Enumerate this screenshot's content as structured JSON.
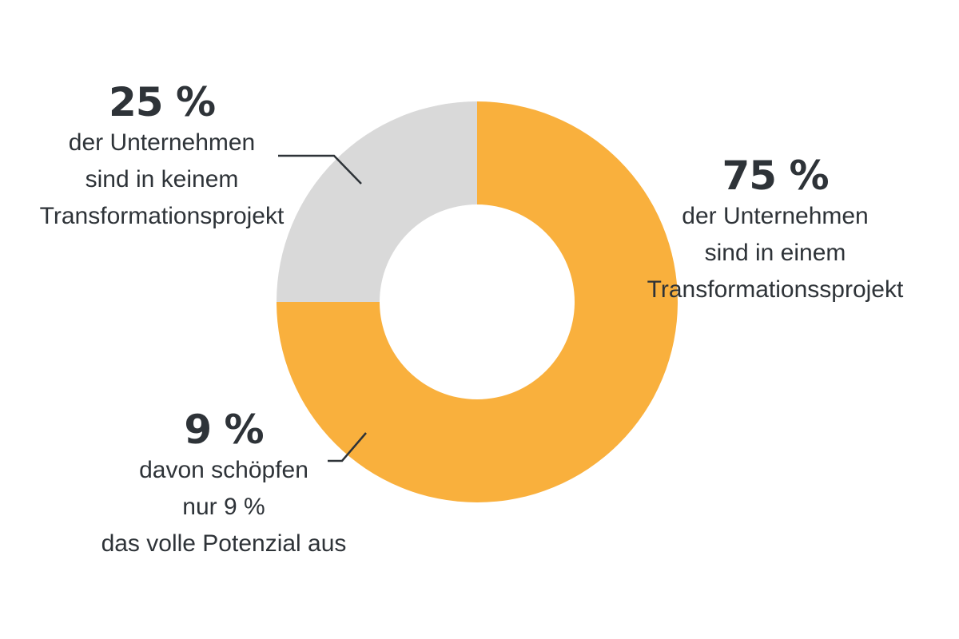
{
  "colors": {
    "primary": "#F9B03D",
    "secondary": "#D9D9D9",
    "text": "#2E3338",
    "leader": "#2E3338"
  },
  "chart_data": {
    "type": "pie",
    "variant": "donut",
    "slices": [
      {
        "label": "in einem Transformationsprojekt",
        "value": 75,
        "color": "#F9B03D"
      },
      {
        "label": "in keinem Transformationsprojekt",
        "value": 25,
        "color": "#D9D9D9"
      }
    ],
    "annotations": {
      "grey": {
        "percent": "25 %",
        "lines": [
          "der Unternehmen",
          "sind in keinem",
          "Transformationsprojekt"
        ]
      },
      "orange": {
        "percent": "75 %",
        "lines": [
          "der Unternehmen",
          "sind in einem",
          "Transformationssprojekt"
        ]
      },
      "sub": {
        "percent": "9 %",
        "lines": [
          "davon schöpfen",
          "nur 9 %",
          "das volle Potenzial aus"
        ]
      }
    }
  }
}
